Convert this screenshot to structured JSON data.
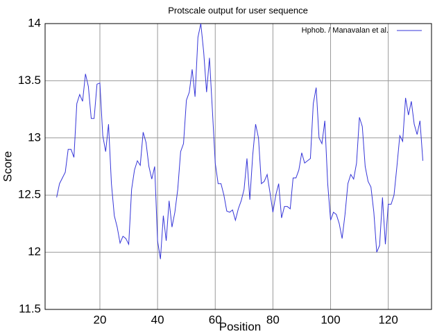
{
  "chart_data": {
    "type": "line",
    "title": "Protscale output for  user  sequence",
    "x_label": "Position",
    "y_label": "Score",
    "x": [
      5,
      6,
      7,
      8,
      9,
      10,
      11,
      12,
      13,
      14,
      15,
      16,
      17,
      18,
      19,
      20,
      21,
      22,
      23,
      24,
      25,
      26,
      27,
      28,
      29,
      30,
      31,
      32,
      33,
      34,
      35,
      36,
      37,
      38,
      39,
      40,
      41,
      42,
      43,
      44,
      45,
      46,
      47,
      48,
      49,
      50,
      51,
      52,
      53,
      54,
      55,
      56,
      57,
      58,
      59,
      60,
      61,
      62,
      63,
      64,
      65,
      66,
      67,
      68,
      69,
      70,
      71,
      72,
      73,
      74,
      75,
      76,
      77,
      78,
      79,
      80,
      81,
      82,
      83,
      84,
      85,
      86,
      87,
      88,
      89,
      90,
      91,
      92,
      93,
      94,
      95,
      96,
      97,
      98,
      99,
      100,
      101,
      102,
      103,
      104,
      105,
      106,
      107,
      108,
      109,
      110,
      111,
      112,
      113,
      114,
      115,
      116,
      117,
      118,
      119,
      120,
      121,
      122,
      123,
      124,
      125,
      126,
      127,
      128,
      129,
      130,
      131,
      132
    ],
    "series": [
      {
        "name": "Hphob.   /   Manavalan et al.",
        "color": "#3535d8",
        "values": [
          12.48,
          12.6,
          12.65,
          12.7,
          12.9,
          12.9,
          12.83,
          13.3,
          13.38,
          13.32,
          13.56,
          13.45,
          13.17,
          13.17,
          13.47,
          13.48,
          13.02,
          12.88,
          13.12,
          12.6,
          12.32,
          12.22,
          12.08,
          12.14,
          12.12,
          12.07,
          12.55,
          12.72,
          12.8,
          12.76,
          13.05,
          12.96,
          12.75,
          12.64,
          12.75,
          12.1,
          11.94,
          12.32,
          12.1,
          12.45,
          12.22,
          12.35,
          12.55,
          12.88,
          12.95,
          13.33,
          13.4,
          13.6,
          13.36,
          13.88,
          14.0,
          13.75,
          13.4,
          13.7,
          13.25,
          12.78,
          12.6,
          12.6,
          12.5,
          12.36,
          12.35,
          12.37,
          12.28,
          12.38,
          12.45,
          12.55,
          12.82,
          12.46,
          12.85,
          13.12,
          13.0,
          12.6,
          12.62,
          12.68,
          12.52,
          12.35,
          12.5,
          12.6,
          12.3,
          12.4,
          12.4,
          12.38,
          12.65,
          12.65,
          12.72,
          12.87,
          12.78,
          12.8,
          12.82,
          13.3,
          13.44,
          13.0,
          12.95,
          13.15,
          12.6,
          12.28,
          12.35,
          12.33,
          12.25,
          12.12,
          12.33,
          12.6,
          12.68,
          12.64,
          12.78,
          13.18,
          13.1,
          12.75,
          12.62,
          12.57,
          12.35,
          12.0,
          12.06,
          12.48,
          12.07,
          12.42,
          12.42,
          12.5,
          12.75,
          13.02,
          12.97,
          13.35,
          13.2,
          13.32,
          13.12,
          13.03,
          13.15,
          12.8
        ]
      }
    ],
    "xlim": [
      1,
      135
    ],
    "xticks": [
      20,
      40,
      60,
      80,
      100,
      120
    ],
    "ylim": [
      11.5,
      14
    ],
    "yticks": [
      11.5,
      12,
      12.5,
      13,
      13.5,
      14
    ],
    "grid": true,
    "legend": "upper right"
  }
}
